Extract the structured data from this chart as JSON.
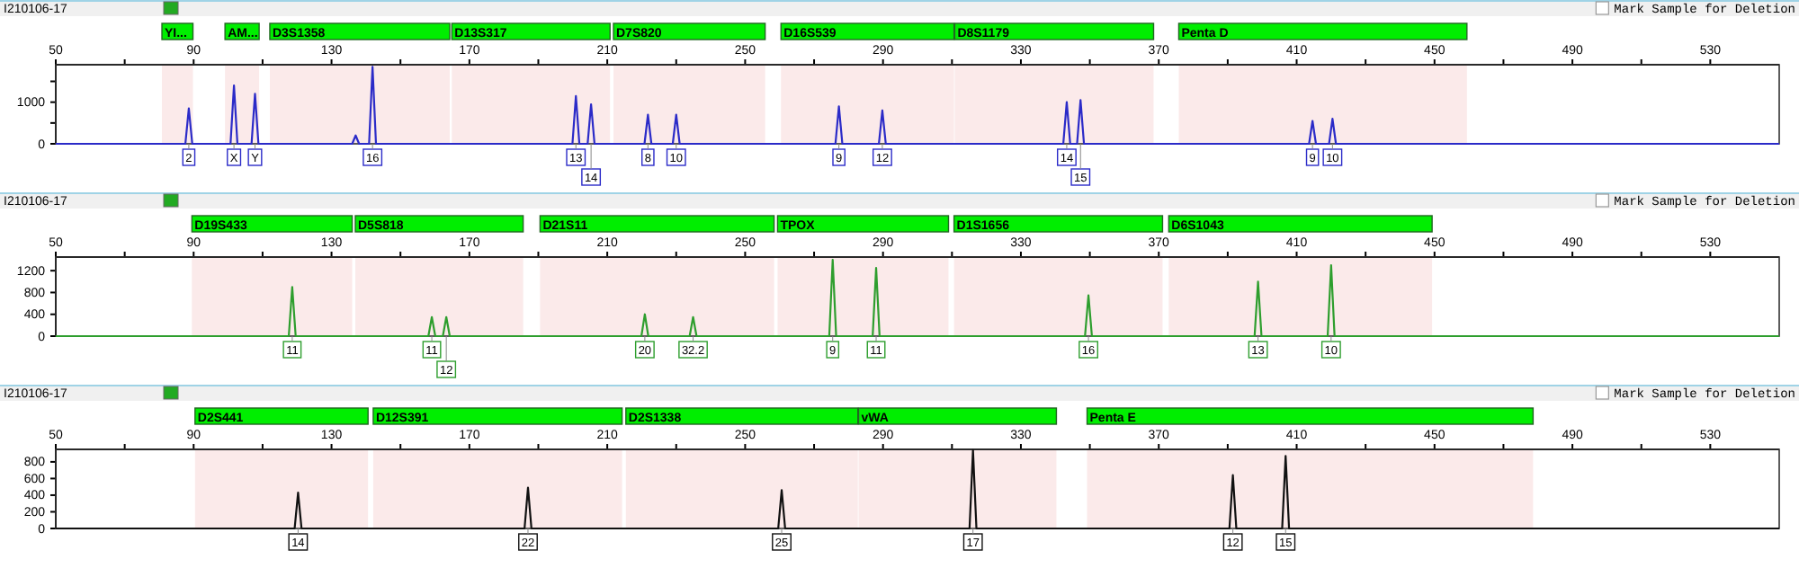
{
  "chart_data": [
    {
      "type": "line",
      "subtitle": "I210106-17",
      "xlim": [
        50,
        550
      ],
      "ylim": [
        0,
        1900
      ],
      "xticks": [
        50,
        {
          "value": 70,
          "label": null
        },
        90,
        {
          "value": 110,
          "label": null
        },
        130,
        {
          "value": 150,
          "label": null
        },
        170,
        {
          "value": 190,
          "label": null
        },
        210,
        {
          "value": 230,
          "label": null
        },
        250,
        {
          "value": 270,
          "label": null
        },
        290,
        {
          "value": 310,
          "label": null
        },
        330,
        {
          "value": 350,
          "label": null
        },
        370,
        {
          "value": 390,
          "label": null
        },
        410,
        {
          "value": 430,
          "label": null
        },
        450,
        {
          "value": 470,
          "label": null
        },
        490,
        {
          "value": 510,
          "label": null
        },
        530
      ],
      "yticks": [
        0,
        {
          "value": 500,
          "label": null
        },
        1000,
        {
          "value": 1500,
          "label": null
        }
      ],
      "bands": [
        {
          "axis": "x",
          "from": 80.8,
          "to": 89.8,
          "label": "YI...",
          "color": "#fbeaea"
        },
        {
          "axis": "x",
          "from": 99.1,
          "to": 109,
          "label": "AM...",
          "color": "#fbeaea"
        },
        {
          "axis": "x",
          "from": 112.1,
          "to": 164.3,
          "label": "D3S1358",
          "color": "#fbeaea"
        },
        {
          "axis": "x",
          "from": 164.9,
          "to": 210.8,
          "label": "D13S317",
          "color": "#fbeaea"
        },
        {
          "axis": "x",
          "from": 211.8,
          "to": 255.8,
          "label": "D7S820",
          "color": "#fbeaea"
        },
        {
          "axis": "x",
          "from": 260.4,
          "to": 310.6,
          "label": "D16S539",
          "color": "#fbeaea"
        },
        {
          "axis": "x",
          "from": 310.8,
          "to": 368.5,
          "label": "D8S1179",
          "color": "#fbeaea"
        },
        {
          "axis": "x",
          "from": 375.8,
          "to": 459.4,
          "label": "Penta D",
          "color": "#fbeaea"
        }
      ],
      "series": [
        {
          "color": "#2b2bc8",
          "x": [
            50,
            87.6,
            88.6,
            89.6,
            100.7,
            101.7,
            102.7,
            106.8,
            107.8,
            108.8,
            136,
            137,
            138,
            140.9,
            141.9,
            142.9,
            199.9,
            200.9,
            201.9,
            204.3,
            205.3,
            206.3,
            220.8,
            221.8,
            222.8,
            229,
            230,
            231,
            276.2,
            277.2,
            278.2,
            288.8,
            289.8,
            290.8,
            342.3,
            343.3,
            344.3,
            346.3,
            347.3,
            348.3,
            413.6,
            414.6,
            415.6,
            419.4,
            420.4,
            421.4,
            550
          ],
          "values": [
            0,
            0,
            850,
            0,
            0,
            1400,
            0,
            0,
            1200,
            0,
            0,
            200,
            0,
            0,
            1850,
            0,
            0,
            1150,
            0,
            0,
            950,
            0,
            0,
            700,
            0,
            0,
            700,
            0,
            0,
            900,
            0,
            0,
            800,
            0,
            0,
            1000,
            0,
            0,
            1050,
            0,
            0,
            550,
            0,
            0,
            600,
            0,
            0
          ]
        }
      ],
      "annotations": [
        "Mark Sample for Deletion",
        {
          "text": "2",
          "x": 88.6,
          "y": 0
        },
        {
          "text": "X",
          "x": 101.7,
          "y": 0
        },
        {
          "text": "Y",
          "x": 107.8,
          "y": 0
        },
        {
          "text": "16",
          "x": 141.9,
          "y": 0
        },
        {
          "text": "13",
          "x": 200.9,
          "y": 0
        },
        {
          "text": "14",
          "x": 205.3,
          "y": 0
        },
        {
          "text": "8",
          "x": 221.8,
          "y": 0
        },
        {
          "text": "10",
          "x": 230,
          "y": 0
        },
        {
          "text": "9",
          "x": 277.2,
          "y": 0
        },
        {
          "text": "12",
          "x": 289.8,
          "y": 0
        },
        {
          "text": "14",
          "x": 343.3,
          "y": 0
        },
        {
          "text": "15",
          "x": 347.3,
          "y": 0
        },
        {
          "text": "9",
          "x": 414.6,
          "y": 0
        },
        {
          "text": "10",
          "x": 420.4,
          "y": 0
        }
      ]
    },
    {
      "type": "line",
      "subtitle": "I210106-17",
      "xlim": [
        50,
        550
      ],
      "ylim": [
        0,
        1450
      ],
      "xticks": [
        50,
        {
          "value": 70,
          "label": null
        },
        90,
        {
          "value": 110,
          "label": null
        },
        130,
        {
          "value": 150,
          "label": null
        },
        170,
        {
          "value": 190,
          "label": null
        },
        210,
        {
          "value": 230,
          "label": null
        },
        250,
        {
          "value": 270,
          "label": null
        },
        290,
        {
          "value": 310,
          "label": null
        },
        330,
        {
          "value": 350,
          "label": null
        },
        370,
        {
          "value": 390,
          "label": null
        },
        410,
        {
          "value": 430,
          "label": null
        },
        450,
        {
          "value": 470,
          "label": null
        },
        490,
        {
          "value": 510,
          "label": null
        },
        530
      ],
      "yticks": [
        0,
        400,
        800,
        1200
      ],
      "bands": [
        {
          "axis": "x",
          "from": 89.5,
          "to": 136,
          "label": "D19S433",
          "color": "#fbeaea"
        },
        {
          "axis": "x",
          "from": 136.9,
          "to": 185.6,
          "label": "D5S818",
          "color": "#fbeaea"
        },
        {
          "axis": "x",
          "from": 190.5,
          "to": 258.4,
          "label": "D21S11",
          "color": "#fbeaea"
        },
        {
          "axis": "x",
          "from": 259.4,
          "to": 309,
          "label": "TPOX",
          "color": "#fbeaea"
        },
        {
          "axis": "x",
          "from": 310.6,
          "to": 371.1,
          "label": "D1S1656",
          "color": "#fbeaea"
        },
        {
          "axis": "x",
          "from": 372.9,
          "to": 449.3,
          "label": "D6S1043",
          "color": "#fbeaea"
        }
      ],
      "series": [
        {
          "color": "#2e9e2e",
          "x": [
            50,
            117.6,
            118.6,
            119.6,
            158.1,
            159.1,
            160.1,
            162.3,
            163.3,
            164.3,
            219.9,
            220.9,
            221.9,
            233.9,
            234.9,
            235.9,
            274.4,
            275.4,
            276.4,
            287,
            288,
            289,
            348.6,
            349.6,
            350.6,
            397.8,
            398.8,
            399.8,
            419,
            420,
            421,
            550
          ],
          "values": [
            0,
            0,
            900,
            0,
            0,
            350,
            0,
            0,
            350,
            0,
            0,
            400,
            0,
            0,
            350,
            0,
            0,
            1400,
            0,
            0,
            1250,
            0,
            0,
            750,
            0,
            0,
            1000,
            0,
            0,
            1300,
            0,
            0
          ]
        }
      ],
      "annotations": [
        "Mark Sample for Deletion",
        {
          "text": "11",
          "x": 118.6,
          "y": 0
        },
        {
          "text": "11",
          "x": 159.1,
          "y": 0
        },
        {
          "text": "12",
          "x": 163.3,
          "y": 0
        },
        {
          "text": "20",
          "x": 220.9,
          "y": 0
        },
        {
          "text": "32.2",
          "x": 234.9,
          "y": 0
        },
        {
          "text": "9",
          "x": 275.4,
          "y": 0
        },
        {
          "text": "11",
          "x": 288,
          "y": 0
        },
        {
          "text": "16",
          "x": 349.6,
          "y": 0
        },
        {
          "text": "13",
          "x": 398.8,
          "y": 0
        },
        {
          "text": "10",
          "x": 420,
          "y": 0
        }
      ]
    },
    {
      "type": "line",
      "subtitle": "I210106-17",
      "xlim": [
        50,
        550
      ],
      "ylim": [
        0,
        950
      ],
      "xticks": [
        50,
        {
          "value": 70,
          "label": null
        },
        90,
        {
          "value": 110,
          "label": null
        },
        130,
        {
          "value": 150,
          "label": null
        },
        170,
        {
          "value": 190,
          "label": null
        },
        210,
        {
          "value": 230,
          "label": null
        },
        250,
        {
          "value": 270,
          "label": null
        },
        290,
        {
          "value": 310,
          "label": null
        },
        330,
        {
          "value": 350,
          "label": null
        },
        370,
        {
          "value": 390,
          "label": null
        },
        410,
        {
          "value": 430,
          "label": null
        },
        450,
        {
          "value": 470,
          "label": null
        },
        490,
        {
          "value": 510,
          "label": null
        },
        530
      ],
      "yticks": [
        0,
        200,
        400,
        600,
        800
      ],
      "bands": [
        {
          "axis": "x",
          "from": 90.4,
          "to": 140.6,
          "label": "D2S441",
          "color": "#fbeaea"
        },
        {
          "axis": "x",
          "from": 142.1,
          "to": 214.3,
          "label": "D12S391",
          "color": "#fbeaea"
        },
        {
          "axis": "x",
          "from": 215.4,
          "to": 282.7,
          "label": "D2S1338",
          "color": "#fbeaea"
        },
        {
          "axis": "x",
          "from": 282.9,
          "to": 340.3,
          "label": "vWA",
          "color": "#fbeaea"
        },
        {
          "axis": "x",
          "from": 349.2,
          "to": 478.6,
          "label": "Penta E",
          "color": "#fbeaea"
        }
      ],
      "series": [
        {
          "color": "#111111",
          "x": [
            50,
            119.3,
            120.3,
            121.3,
            186,
            187,
            188,
            259.6,
            260.6,
            261.6,
            315.1,
            316.1,
            317.1,
            390.5,
            391.5,
            392.5,
            405.8,
            406.8,
            407.8,
            550
          ],
          "values": [
            0,
            0,
            430,
            0,
            0,
            490,
            0,
            0,
            460,
            0,
            0,
            940,
            0,
            0,
            640,
            0,
            0,
            870,
            0,
            0
          ]
        }
      ],
      "annotations": [
        "Mark Sample for Deletion",
        {
          "text": "14",
          "x": 120.3,
          "y": 0
        },
        {
          "text": "22",
          "x": 187,
          "y": 0
        },
        {
          "text": "25",
          "x": 260.6,
          "y": 0
        },
        {
          "text": "17",
          "x": 316.1,
          "y": 0
        },
        {
          "text": "12",
          "x": 391.5,
          "y": 0
        },
        {
          "text": "15",
          "x": 406.8,
          "y": 0
        }
      ]
    }
  ]
}
